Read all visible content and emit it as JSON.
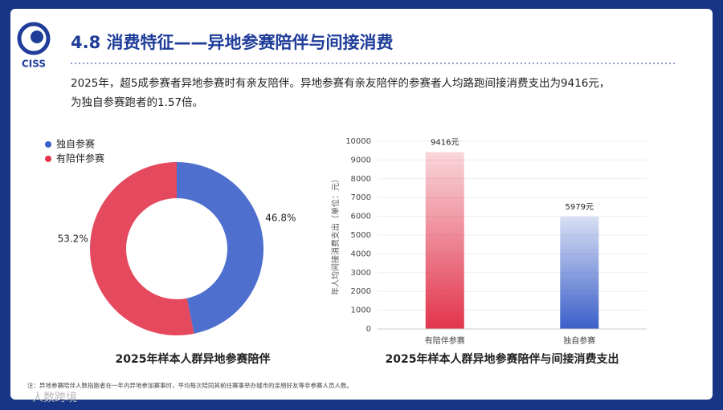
{
  "header": {
    "logo_text": "CISS",
    "title": "4.8 消费特征——异地参赛陪伴与间接消费"
  },
  "summary": [
    "2025年，超5成参赛者异地参赛时有亲友陪伴。异地参赛有亲友陪伴的参赛者人均路跑间接消费支出为9416元，",
    "为独自参赛跑者的1.57倍。"
  ],
  "chart_data": [
    {
      "type": "pie",
      "donut": true,
      "title": "2025年样本人群异地参赛陪伴",
      "categories": [
        "独自参赛",
        "有陪伴参赛"
      ],
      "values": [
        46.8,
        53.2
      ],
      "value_labels": [
        "46.8%",
        "53.2%"
      ],
      "colors": [
        "#3b5fc9",
        "#e2354c"
      ],
      "legend": "top-left"
    },
    {
      "type": "bar",
      "title": "2025年样本人群异地参赛陪伴与间接消费支出",
      "y_label": "年人均间接消费支出（单位：元）",
      "categories": [
        "有陪伴参赛",
        "独自参赛"
      ],
      "values": [
        9416,
        5979
      ],
      "value_labels": [
        "9416元",
        "5979元"
      ],
      "colors": [
        "#e2354c",
        "#3b5fc9"
      ],
      "ylim": [
        0,
        10000
      ],
      "yticks": [
        0,
        1000,
        2000,
        3000,
        4000,
        5000,
        6000,
        7000,
        8000,
        9000,
        10000
      ],
      "grid": true
    }
  ],
  "footnote": "注：异地参赛陪伴人数指跑者在一年内异地参加赛事时，平均每次陪同其前往赛事举办城市的亲朋好友等非参赛人员人数。",
  "watermark": "人数跨境"
}
